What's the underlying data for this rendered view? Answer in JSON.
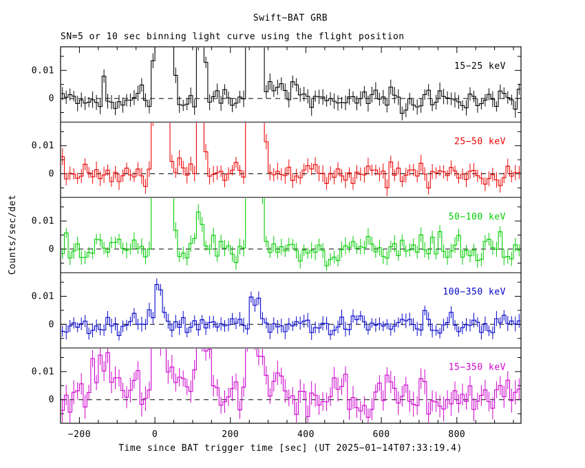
{
  "title": "Swift−BAT GRB",
  "subtitle": "SN=5 or 10 sec binning light curve using the flight position",
  "ylabel": "Counts/sec/det",
  "xlabel": "Time since BAT trigger time [sec] (UT 2025−01−14T07:33:19.4)",
  "chart_data": {
    "type": "line",
    "style": "step-histogram-with-error-bars",
    "grid": false,
    "zero_line": "dashed",
    "bin_seconds": 10,
    "x_range": [
      -250,
      970
    ],
    "x_ticks": [
      -200,
      0,
      200,
      400,
      600,
      800
    ],
    "x_tick_labels": [
      "−200",
      "0",
      "200",
      "400",
      "600",
      "800"
    ],
    "x_minor_step": 50,
    "y_range": [
      -0.0084,
      0.0184
    ],
    "y_ticks": [
      0,
      0.01
    ],
    "y_tick_labels": [
      "0",
      "0.01"
    ],
    "y_minor_ticks": [
      -0.005,
      0.005,
      0.015
    ],
    "burst_times_sec": [
      0,
      30,
      120,
      260,
      285
    ],
    "panels": [
      {
        "label": "15−25 keV",
        "color": "#000000",
        "noise": 0.0022,
        "err": 0.0024,
        "seed": 3,
        "bursts": [
          [
            2,
            6,
            0.03
          ],
          [
            14,
            5,
            0.04
          ],
          [
            30,
            7,
            0.045
          ],
          [
            46,
            6,
            0.022
          ],
          [
            120,
            6,
            0.03
          ],
          [
            128,
            5,
            0.02
          ],
          [
            255,
            8,
            0.04
          ],
          [
            270,
            8,
            0.05
          ],
          [
            285,
            6,
            0.02
          ]
        ],
        "plateaus": [
          [
            290,
            360,
            0.003
          ]
        ]
      },
      {
        "label": "25−50 keV",
        "color": "#ee0000",
        "noise": 0.0022,
        "err": 0.0024,
        "seed": 7,
        "bursts": [
          [
            2,
            6,
            0.035
          ],
          [
            14,
            5,
            0.045
          ],
          [
            30,
            7,
            0.045
          ],
          [
            120,
            6,
            0.024
          ],
          [
            128,
            5,
            0.014
          ],
          [
            255,
            8,
            0.05
          ],
          [
            270,
            9,
            0.055
          ],
          [
            288,
            6,
            0.015
          ]
        ],
        "plateaus": [
          [
            290,
            340,
            0.002
          ]
        ]
      },
      {
        "label": "50−100 keV",
        "color": "#00cc00",
        "noise": 0.0024,
        "err": 0.0024,
        "seed": 13,
        "bursts": [
          [
            2,
            6,
            0.04
          ],
          [
            14,
            5,
            0.05
          ],
          [
            28,
            7,
            0.05
          ],
          [
            44,
            6,
            0.02
          ],
          [
            118,
            6,
            0.014
          ],
          [
            255,
            8,
            0.045
          ],
          [
            268,
            8,
            0.05
          ],
          [
            283,
            5,
            0.015
          ]
        ],
        "plateaus": []
      },
      {
        "label": "100−350 keV",
        "color": "#0000cc",
        "noise": 0.002,
        "err": 0.0022,
        "seed": 21,
        "bursts": [
          [
            4,
            5,
            0.013
          ],
          [
            16,
            5,
            0.011
          ],
          [
            30,
            6,
            0.008
          ],
          [
            258,
            6,
            0.009
          ],
          [
            272,
            6,
            0.008
          ]
        ],
        "plateaus": []
      },
      {
        "label": "15−350 keV",
        "color": "#cc00cc",
        "noise": 0.004,
        "err": 0.0036,
        "seed": 42,
        "noise_after": [
          400,
          0.0032
        ],
        "bursts": [
          [
            -180,
            15,
            0.009
          ],
          [
            -140,
            12,
            0.01
          ],
          [
            -100,
            10,
            0.009
          ],
          [
            2,
            8,
            0.03
          ],
          [
            25,
            10,
            0.022
          ],
          [
            60,
            10,
            0.01
          ],
          [
            118,
            8,
            0.03
          ],
          [
            140,
            10,
            0.012
          ],
          [
            255,
            12,
            0.03
          ],
          [
            285,
            10,
            0.015
          ],
          [
            330,
            10,
            0.01
          ],
          [
            500,
            8,
            0.007
          ],
          [
            620,
            8,
            0.007
          ],
          [
            700,
            8,
            0.006
          ]
        ],
        "plateaus": [
          [
            -220,
            360,
            0.002
          ]
        ]
      }
    ]
  }
}
